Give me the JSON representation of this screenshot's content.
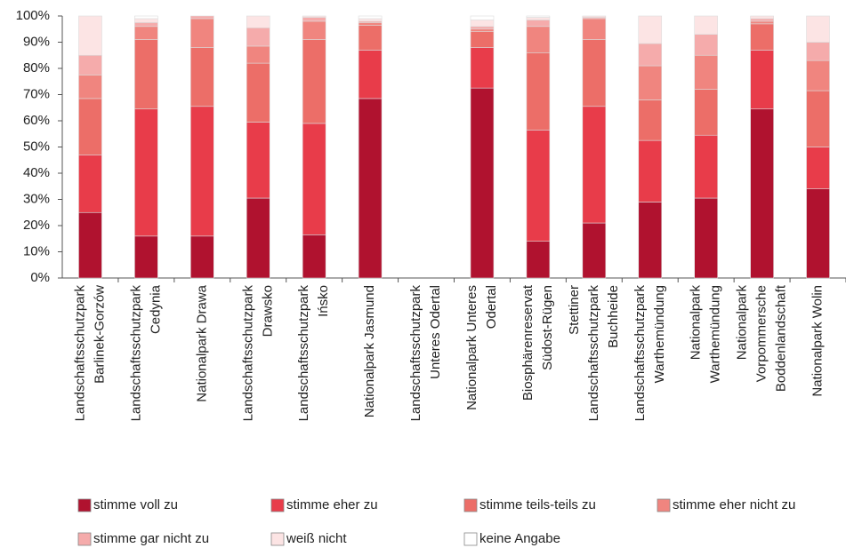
{
  "chart_data": {
    "type": "stacked_bar",
    "categories": [
      "Landschaftsschutzpark\nBarlinek-Gorzów",
      "Landschaftsschutzpark\nCedynia",
      "Nationalpark Drawa",
      "Landschaftsschutzpark\nDrawsko",
      "Landschaftsschutzpark\nIńsko",
      "Nationalpark Jasmund",
      "Landschaftsschutzpark\nUnteres Odertal",
      "Nationalpark Unteres\nOdertal",
      "Biosphärenreservat\nSüdost-Rügen",
      "Stettiner\nLandschaftsschutzpark\nBuchheide",
      "Landschaftsschutzpark\nWarthemündung",
      "Nationalpark\nWarthemündung",
      "Nationalpark\nVorpommersche\nBoddenlandschaft",
      "Nationalpark Wolin"
    ],
    "series": [
      {
        "name": "stimme voll zu",
        "color": "#b0122f",
        "values": [
          25,
          16,
          16,
          30.5,
          16.5,
          68.5,
          null,
          72.5,
          14,
          21,
          29,
          30.5,
          64.5,
          34
        ]
      },
      {
        "name": "stimme eher zu",
        "color": "#e83c4a",
        "values": [
          22,
          48.5,
          49.5,
          29,
          42.5,
          18.5,
          null,
          15.5,
          42.5,
          44.5,
          23.5,
          24,
          22.5,
          16
        ]
      },
      {
        "name": "stimme teils-teils zu",
        "color": "#ec6e68",
        "values": [
          21.5,
          26.5,
          22.5,
          22.5,
          32,
          9.5,
          null,
          6,
          29.5,
          25.5,
          15.5,
          17.5,
          10,
          21.5
        ]
      },
      {
        "name": "stimme eher nicht zu",
        "color": "#f0857f",
        "values": [
          9,
          5,
          11,
          6.5,
          7,
          1,
          null,
          1,
          10,
          8,
          13,
          13,
          1,
          11.5
        ]
      },
      {
        "name": "stimme gar nicht zu",
        "color": "#f5abab",
        "values": [
          7.5,
          1.5,
          1,
          7,
          1.5,
          0.5,
          null,
          1,
          2.5,
          0.5,
          8.5,
          8,
          1,
          7
        ]
      },
      {
        "name": "weiß nicht",
        "color": "#fce4e4",
        "values": [
          15,
          1.5,
          0,
          4.5,
          0.5,
          1,
          null,
          2.5,
          1,
          0.5,
          10.5,
          7,
          1,
          10
        ]
      },
      {
        "name": "keine Angabe",
        "color": "#ffffff",
        "values": [
          0,
          1,
          0,
          0,
          0,
          1,
          null,
          1.5,
          0.5,
          0,
          0,
          0,
          0,
          0
        ]
      }
    ],
    "ylim": [
      0,
      100
    ],
    "yticks": [
      {
        "value": 0,
        "label": "0%"
      },
      {
        "value": 10,
        "label": "10%"
      },
      {
        "value": 20,
        "label": "20%"
      },
      {
        "value": 30,
        "label": "30%"
      },
      {
        "value": 40,
        "label": "40%"
      },
      {
        "value": 50,
        "label": "50%"
      },
      {
        "value": 60,
        "label": "60%"
      },
      {
        "value": 70,
        "label": "70%"
      },
      {
        "value": 80,
        "label": "80%"
      },
      {
        "value": 90,
        "label": "90%"
      },
      {
        "value": 100,
        "label": "100%"
      }
    ],
    "legend": "bottom"
  }
}
